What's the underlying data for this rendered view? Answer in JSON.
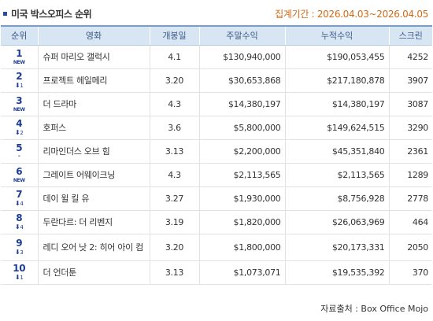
{
  "header": {
    "title": "미국 박스오피스 순위",
    "period": "집계기간 : 2026.04.03~2026.04.05"
  },
  "table": {
    "columns": [
      "순위",
      "영화",
      "개봉일",
      "주말수익",
      "누적수익",
      "스크린"
    ],
    "rows": [
      {
        "rank": "1",
        "change": "NEW",
        "title": "슈퍼 마리오 갤럭시",
        "release": "4.1",
        "weekend": "$130,940,000",
        "total": "$190,053,455",
        "screens": "4252"
      },
      {
        "rank": "2",
        "change": "1",
        "title": "프로젝트 헤일메리",
        "release": "3.20",
        "weekend": "$30,653,868",
        "total": "$217,180,878",
        "screens": "3907"
      },
      {
        "rank": "3",
        "change": "NEW",
        "title": "더 드라마",
        "release": "4.3",
        "weekend": "$14,380,197",
        "total": "$14,380,197",
        "screens": "3087"
      },
      {
        "rank": "4",
        "change": "2",
        "title": "호퍼스",
        "release": "3.6",
        "weekend": "$5,800,000",
        "total": "$149,624,515",
        "screens": "3290"
      },
      {
        "rank": "5",
        "change": "-",
        "title": "리마인더스 오브 힘",
        "release": "3.13",
        "weekend": "$2,200,000",
        "total": "$45,351,840",
        "screens": "2361"
      },
      {
        "rank": "6",
        "change": "NEW",
        "title": "그레이트 어웨이크닝",
        "release": "4.3",
        "weekend": "$2,113,565",
        "total": "$2,113,565",
        "screens": "1289"
      },
      {
        "rank": "7",
        "change": "4",
        "title": "데이 윌 킬 유",
        "release": "3.27",
        "weekend": "$1,930,000",
        "total": "$8,756,928",
        "screens": "2778"
      },
      {
        "rank": "8",
        "change": "4",
        "title": "두란다르: 더 리벤지",
        "release": "3.19",
        "weekend": "$1,820,000",
        "total": "$26,063,969",
        "screens": "464"
      },
      {
        "rank": "9",
        "change": "3",
        "title": "레디 오어 낫 2: 히어 아이 컴",
        "release": "3.20",
        "weekend": "$1,800,000",
        "total": "$20,173,331",
        "screens": "2050"
      },
      {
        "rank": "10",
        "change": "1",
        "title": "더 언더툰",
        "release": "3.13",
        "weekend": "$1,073,071",
        "total": "$19,535,392",
        "screens": "370"
      }
    ]
  },
  "footer": {
    "source": "자료출처 : Box Office Mojo"
  }
}
